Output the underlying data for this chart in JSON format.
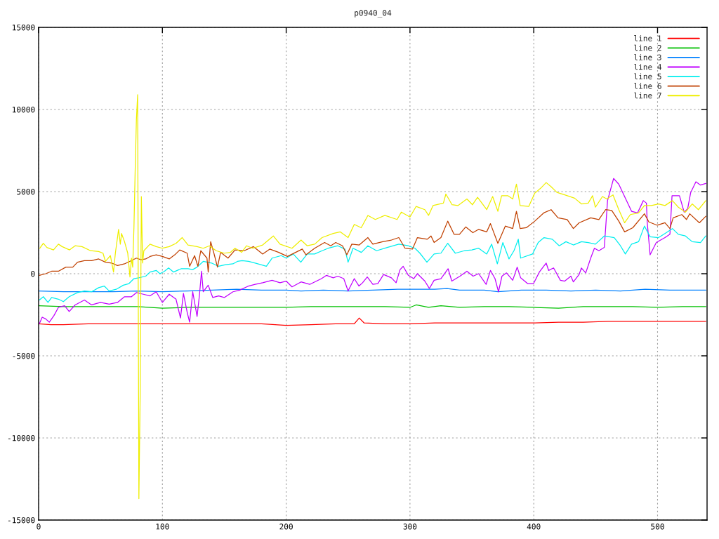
{
  "chart_data": {
    "type": "line",
    "title": "p0940_04",
    "xlim": [
      0,
      540
    ],
    "ylim": [
      -15000,
      15000
    ],
    "xticks": [
      0,
      100,
      200,
      300,
      400,
      500
    ],
    "yticks": [
      -15000,
      -10000,
      -5000,
      0,
      5000,
      10000,
      15000
    ],
    "grid": true,
    "legend": "top right",
    "series": [
      {
        "name": "line 1",
        "color": "#ff0000",
        "x": [
          0,
          10,
          20,
          40,
          60,
          80,
          100,
          120,
          140,
          160,
          180,
          200,
          220,
          240,
          255,
          259,
          263,
          280,
          300,
          320,
          340,
          360,
          380,
          400,
          420,
          440,
          460,
          480,
          500,
          520,
          539
        ],
        "values": [
          -3050,
          -3100,
          -3100,
          -3050,
          -3050,
          -3050,
          -3050,
          -3050,
          -3050,
          -3050,
          -3050,
          -3150,
          -3100,
          -3050,
          -3050,
          -2700,
          -3000,
          -3050,
          -3050,
          -3000,
          -3000,
          -3000,
          -3000,
          -3000,
          -2950,
          -2950,
          -2900,
          -2900,
          -2900,
          -2900,
          -2900
        ]
      },
      {
        "name": "line 2",
        "color": "#00c000",
        "x": [
          0,
          20,
          40,
          60,
          80,
          100,
          120,
          140,
          160,
          180,
          200,
          220,
          240,
          260,
          280,
          300,
          305,
          315,
          325,
          340,
          360,
          380,
          400,
          420,
          440,
          460,
          480,
          500,
          520,
          539
        ],
        "values": [
          -1950,
          -2000,
          -2000,
          -2000,
          -2000,
          -2100,
          -2050,
          -2050,
          -2050,
          -2050,
          -2050,
          -2000,
          -2000,
          -2000,
          -2000,
          -2050,
          -1900,
          -2050,
          -1950,
          -2050,
          -2000,
          -2000,
          -2050,
          -2100,
          -2000,
          -2000,
          -2000,
          -2050,
          -2000,
          -2000
        ]
      },
      {
        "name": "line 3",
        "color": "#0080ff",
        "x": [
          0,
          20,
          40,
          60,
          80,
          100,
          120,
          140,
          160,
          180,
          200,
          212,
          230,
          250,
          270,
          290,
          300,
          320,
          330,
          340,
          360,
          371,
          390,
          410,
          430,
          450,
          470,
          490,
          510,
          539
        ],
        "values": [
          -1050,
          -1100,
          -1100,
          -1100,
          -1050,
          -1100,
          -1050,
          -1000,
          -950,
          -1000,
          -1000,
          -1050,
          -1000,
          -1050,
          -1000,
          -950,
          -950,
          -950,
          -900,
          -1000,
          -1000,
          -1100,
          -1000,
          -1000,
          -1050,
          -1000,
          -1050,
          -950,
          -1000,
          -1000
        ]
      },
      {
        "name": "line 4",
        "color": "#c000ff",
        "x": [
          0.6,
          2.9,
          5.7,
          8.6,
          12.4,
          16,
          21,
          24.7,
          29.5,
          37,
          42.8,
          50,
          57,
          63.7,
          69.4,
          75,
          79,
          84.6,
          90,
          95,
          100,
          105.5,
          111,
          114.6,
          117,
          120,
          122,
          124.5,
          128,
          130,
          131.6,
          133,
          137,
          140.7,
          145.4,
          150,
          157,
          162.5,
          169.6,
          175,
          181,
          188.6,
          195,
          200,
          204.7,
          212,
          219,
          228.5,
          232.6,
          238,
          241.7,
          246.5,
          250,
          255,
          258.8,
          261.7,
          265.5,
          270,
          274,
          278.7,
          285,
          288.8,
          292,
          294.5,
          298.7,
          303,
          306,
          312,
          315.7,
          319.5,
          325,
          330.8,
          333.8,
          340.4,
          346,
          351,
          355.5,
          361.5,
          365,
          368.7,
          371.5,
          374.3,
          378,
          383,
          386.6,
          389.4,
          395,
          399.8,
          404.5,
          410,
          412,
          416,
          421.5,
          425,
          430,
          432,
          436.6,
          438.5,
          442,
          446,
          449,
          452.6,
          457,
          458,
          459.6,
          464.5,
          468.7,
          474.3,
          479,
          483.8,
          488.5,
          491,
          491.7,
          494,
          499,
          506,
          510,
          511.7,
          517.7,
          521.5,
          524.3,
          526.8,
          531,
          534.7,
          539
        ],
        "values": [
          -3050,
          -2650,
          -2750,
          -2950,
          -2550,
          -2050,
          -1950,
          -2300,
          -1900,
          -1600,
          -1900,
          -1750,
          -1850,
          -1750,
          -1400,
          -1400,
          -1150,
          -1250,
          -1350,
          -1100,
          -1750,
          -1250,
          -1550,
          -2700,
          -1200,
          -2350,
          -2950,
          -1100,
          -2600,
          -1250,
          150,
          -1100,
          -700,
          -1450,
          -1350,
          -1450,
          -1100,
          -1000,
          -750,
          -650,
          -550,
          -400,
          -550,
          -450,
          -800,
          -500,
          -650,
          -300,
          -100,
          -250,
          -150,
          -300,
          -1050,
          -300,
          -750,
          -550,
          -200,
          -650,
          -600,
          -50,
          -250,
          -550,
          250,
          450,
          -100,
          -300,
          0,
          -450,
          -900,
          -400,
          -300,
          300,
          -450,
          -150,
          150,
          -150,
          0,
          -650,
          200,
          -300,
          -1100,
          -150,
          50,
          -400,
          400,
          -250,
          -600,
          -600,
          100,
          650,
          200,
          350,
          -400,
          -450,
          -150,
          -500,
          -50,
          350,
          50,
          950,
          1550,
          1400,
          1600,
          2700,
          4450,
          5800,
          5450,
          4550,
          3800,
          3700,
          4450,
          4300,
          3100,
          1150,
          1900,
          2200,
          2400,
          4750,
          4750,
          3750,
          3950,
          4950,
          5600,
          5400,
          5500
        ]
      },
      {
        "name": "line 5",
        "color": "#00eeee",
        "x": [
          0.6,
          3.8,
          7.6,
          10.5,
          16,
          20,
          24.7,
          31.4,
          37,
          42.8,
          48.5,
          53,
          57,
          62.7,
          68.4,
          73,
          77,
          80.8,
          86.5,
          90,
          95,
          98,
          101.7,
          105,
          109,
          115,
          120.7,
          124.5,
          128,
          133,
          139.7,
          145.4,
          151,
          157,
          160.6,
          164.4,
          169.6,
          175,
          184,
          188.6,
          196,
          200,
          205.7,
          211.8,
          217,
          223,
          229,
          234,
          241.7,
          247.4,
          250,
          254,
          260.7,
          266,
          273,
          281.6,
          291,
          298.7,
          304,
          308,
          313.7,
          319.5,
          325,
          330.5,
          336.6,
          344,
          350,
          355.5,
          362,
          366,
          370.6,
          375,
          380,
          384,
          387.5,
          389.4,
          399,
          403.6,
          408.3,
          415,
          420.6,
          426,
          432,
          438.5,
          444,
          449.8,
          457,
          465,
          469.6,
          474,
          479,
          484.7,
          489.4,
          494,
          500.8,
          506,
          512,
          516.8,
          522.5,
          528,
          534.7,
          539
        ],
        "values": [
          -1600,
          -1400,
          -1750,
          -1450,
          -1550,
          -1700,
          -1400,
          -1150,
          -1050,
          -1100,
          -850,
          -750,
          -1050,
          -950,
          -700,
          -600,
          -300,
          -250,
          -150,
          100,
          200,
          0,
          150,
          350,
          100,
          300,
          300,
          250,
          400,
          750,
          650,
          450,
          550,
          600,
          750,
          800,
          750,
          650,
          450,
          950,
          1100,
          950,
          1200,
          700,
          1200,
          1200,
          1400,
          1550,
          1700,
          1500,
          700,
          1550,
          1300,
          1700,
          1400,
          1600,
          1800,
          1700,
          1550,
          1250,
          700,
          1200,
          1250,
          1850,
          1250,
          1400,
          1450,
          1550,
          1200,
          1800,
          600,
          1900,
          900,
          1400,
          2100,
          950,
          1200,
          1900,
          2200,
          2100,
          1700,
          1950,
          1750,
          1950,
          1900,
          1800,
          2300,
          2200,
          1750,
          1200,
          1800,
          1950,
          2900,
          2250,
          2200,
          2450,
          2750,
          2400,
          2300,
          1950,
          1900,
          2300
        ]
      },
      {
        "name": "line 6",
        "color": "#c04000",
        "x": [
          0.6,
          5.7,
          10.5,
          16,
          22,
          27.6,
          31.4,
          37,
          42.8,
          48.5,
          54,
          59,
          63.7,
          69.4,
          75,
          79,
          82.7,
          86.5,
          90,
          95,
          100,
          105.5,
          110,
          114,
          120,
          122,
          126,
          128.7,
          131,
          136,
          137,
          139,
          141.6,
          144.5,
          147,
          153,
          158.7,
          166,
          173.6,
          181,
          186.7,
          194,
          201,
          207.6,
          213,
          216,
          223,
          231,
          236,
          240,
          245.5,
          249,
          253,
          259,
          266,
          270,
          278,
          285,
          291,
          296,
          302,
          306,
          314,
          317,
          319.5,
          325,
          330.5,
          335.6,
          340,
          345,
          350.8,
          355.5,
          362,
          365,
          371,
          377,
          383,
          386,
          389,
          394,
          400.8,
          408,
          414,
          419.6,
          427,
          432,
          436.6,
          446,
          452.6,
          458,
          463,
          468.7,
          473.4,
          480,
          489.4,
          493,
          499.8,
          506,
          510,
          512.6,
          519.6,
          523.4,
          526,
          533.8,
          539
        ],
        "values": [
          -100,
          0,
          150,
          150,
          400,
          400,
          700,
          800,
          800,
          900,
          700,
          650,
          500,
          600,
          800,
          950,
          850,
          900,
          1050,
          1150,
          1050,
          900,
          1150,
          1450,
          1250,
          450,
          1100,
          450,
          1400,
          950,
          100,
          1950,
          1250,
          400,
          1300,
          950,
          1450,
          1400,
          1650,
          1200,
          1500,
          1300,
          1050,
          1300,
          1500,
          1150,
          1550,
          1900,
          1700,
          1900,
          1700,
          1150,
          1800,
          1750,
          2200,
          1800,
          1950,
          2050,
          2200,
          1550,
          1500,
          2200,
          2100,
          2300,
          1900,
          2200,
          3200,
          2400,
          2400,
          2850,
          2500,
          2700,
          2550,
          3050,
          1850,
          2900,
          2750,
          3800,
          2750,
          2800,
          3200,
          3700,
          3900,
          3400,
          3300,
          2750,
          3100,
          3400,
          3300,
          3900,
          3850,
          3200,
          2550,
          2800,
          3650,
          3150,
          2950,
          3100,
          2750,
          3400,
          3600,
          3300,
          3650,
          3100,
          3500
        ]
      },
      {
        "name": "line 7",
        "color": "#eeee00",
        "x": [
          1,
          3.8,
          6.7,
          12,
          16,
          19,
          25,
          29.5,
          35,
          42,
          48.5,
          52,
          54,
          58,
          60.5,
          62,
          64.6,
          66,
          67,
          69.4,
          72,
          73.8,
          75,
          76,
          77,
          78,
          79,
          80,
          81,
          82,
          83,
          84,
          85,
          90,
          95,
          100,
          105.5,
          111,
          116,
          120.7,
          128,
          133,
          138,
          143.5,
          150,
          155,
          158.7,
          164,
          168,
          173,
          181,
          189.6,
          195,
          204.7,
          212,
          217,
          223,
          229,
          238,
          243.6,
          250,
          255,
          260.6,
          266,
          272,
          279.7,
          289.6,
          293,
          300,
          305,
          312,
          315,
          318.6,
          327,
          329,
          334,
          338.7,
          346,
          350.5,
          354.6,
          362,
          366.8,
          371,
          374,
          379,
          383,
          386,
          389,
          396,
          400.8,
          405.5,
          410,
          414,
          418.7,
          425,
          433,
          438.5,
          444,
          447.5,
          449.8,
          455.5,
          459,
          464,
          468.7,
          473.4,
          478,
          484.7,
          489.4,
          495,
          500.8,
          506,
          512,
          516.8,
          522.5,
          528,
          533,
          539
        ],
        "values": [
          1550,
          1850,
          1600,
          1450,
          1800,
          1650,
          1450,
          1700,
          1650,
          1400,
          1350,
          1250,
          750,
          1100,
          100,
          1250,
          2700,
          1800,
          2450,
          1950,
          1250,
          -200,
          950,
          400,
          2800,
          6300,
          9400,
          10900,
          -13700,
          -7550,
          4700,
          650,
          1400,
          1800,
          1650,
          1550,
          1650,
          1850,
          2200,
          1750,
          1650,
          1550,
          1700,
          1400,
          1250,
          1300,
          1550,
          1300,
          1700,
          1550,
          1750,
          2300,
          1800,
          1550,
          2050,
          1700,
          1800,
          2200,
          2450,
          2550,
          2200,
          3000,
          2800,
          3550,
          3300,
          3550,
          3300,
          3750,
          3450,
          4100,
          3900,
          3550,
          4150,
          4300,
          4850,
          4200,
          4150,
          4550,
          4200,
          4650,
          3900,
          4700,
          3800,
          4750,
          4750,
          4550,
          5450,
          4150,
          4100,
          4900,
          5200,
          5550,
          5300,
          4950,
          4800,
          4600,
          4250,
          4300,
          4750,
          4050,
          4700,
          4550,
          4800,
          3900,
          3100,
          3600,
          3700,
          4150,
          4150,
          4250,
          4150,
          4450,
          4050,
          3750,
          4250,
          3900,
          4450
        ]
      }
    ]
  }
}
